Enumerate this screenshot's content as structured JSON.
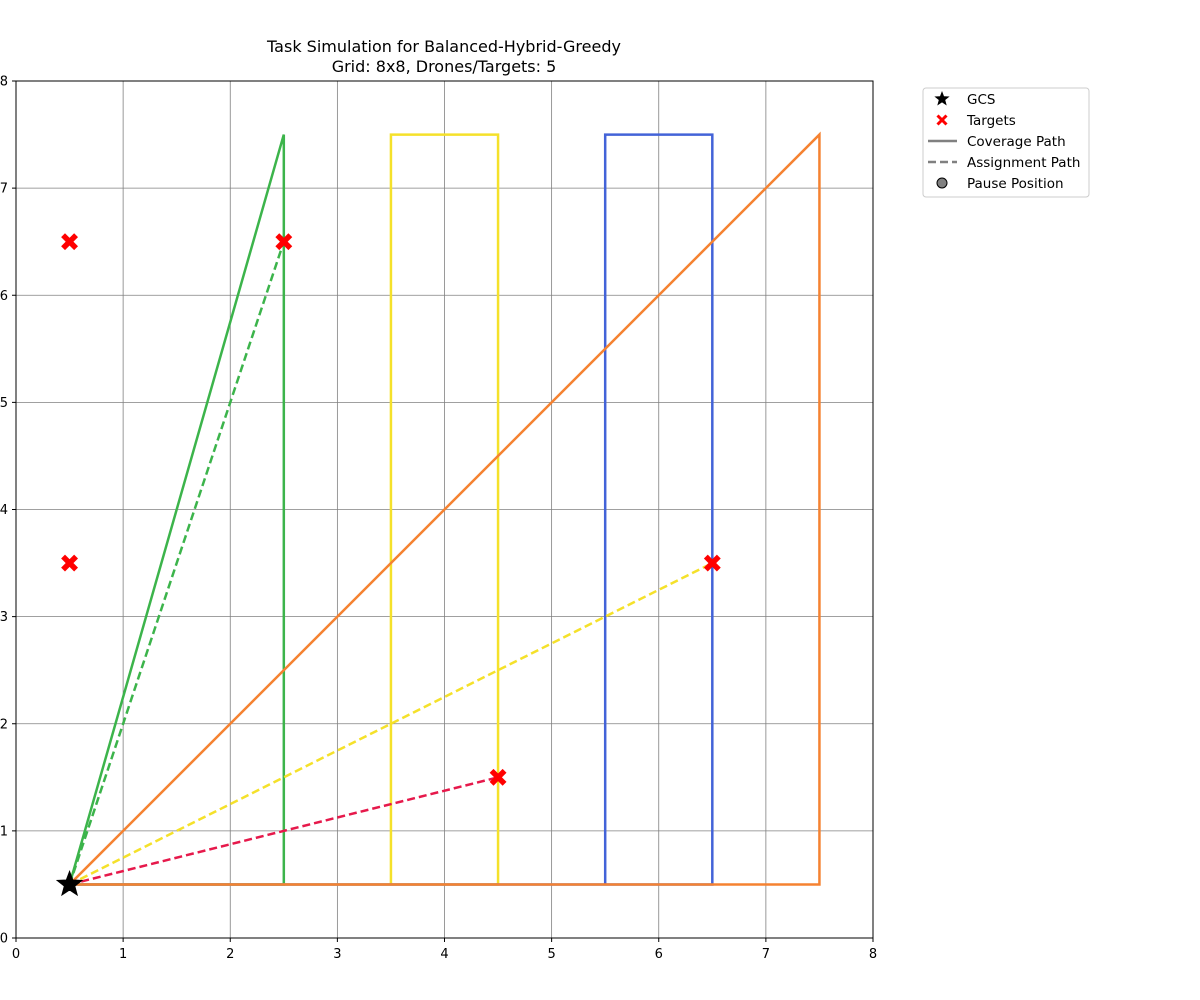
{
  "chart_data": {
    "type": "line",
    "title": "Task Simulation for Balanced-Hybrid-Greedy",
    "subtitle": "Grid: 8x8, Drones/Targets: 5",
    "xlim": [
      0,
      8
    ],
    "ylim": [
      0,
      8
    ],
    "x_ticks": [
      "0",
      "1",
      "2",
      "3",
      "4",
      "5",
      "6",
      "7",
      "8"
    ],
    "y_ticks": [
      "0",
      "1",
      "2",
      "3",
      "4",
      "5",
      "6",
      "7",
      "8"
    ],
    "grid": true,
    "legend_placement": "outside upper right",
    "legend": [
      {
        "label": "GCS",
        "marker": "star",
        "color": "#000000"
      },
      {
        "label": "Targets",
        "marker": "x",
        "color": "#ff0000"
      },
      {
        "label": "Coverage Path",
        "marker": "solid-line",
        "color": "#808080"
      },
      {
        "label": "Assignment Path",
        "marker": "dashed-line",
        "color": "#808080"
      },
      {
        "label": "Pause Position",
        "marker": "circle",
        "color": "#808080"
      }
    ],
    "gcs": {
      "x": 0.5,
      "y": 0.5
    },
    "targets": [
      {
        "x": 0.5,
        "y": 6.5
      },
      {
        "x": 2.5,
        "y": 6.5
      },
      {
        "x": 0.5,
        "y": 3.5
      },
      {
        "x": 6.5,
        "y": 3.5
      },
      {
        "x": 4.5,
        "y": 1.5
      }
    ],
    "coverage_paths": [
      {
        "color": "#3cb44b",
        "points": [
          [
            0.5,
            0.5
          ],
          [
            2.5,
            7.5
          ],
          [
            2.5,
            0.5
          ],
          [
            0.5,
            0.5
          ]
        ]
      },
      {
        "color": "#f5e12a",
        "points": [
          [
            0.5,
            0.5
          ],
          [
            3.5,
            0.5
          ],
          [
            3.5,
            7.5
          ],
          [
            4.5,
            7.5
          ],
          [
            4.5,
            0.5
          ],
          [
            0.5,
            0.5
          ]
        ]
      },
      {
        "color": "#4363d8",
        "points": [
          [
            0.5,
            0.5
          ],
          [
            5.5,
            0.5
          ],
          [
            5.5,
            7.5
          ],
          [
            6.5,
            7.5
          ],
          [
            6.5,
            0.5
          ],
          [
            0.5,
            0.5
          ]
        ]
      },
      {
        "color": "#f58231",
        "points": [
          [
            0.5,
            0.5
          ],
          [
            7.5,
            7.5
          ],
          [
            7.5,
            0.5
          ],
          [
            0.5,
            0.5
          ]
        ]
      }
    ],
    "assignment_paths": [
      {
        "color": "#3cb44b",
        "points": [
          [
            0.5,
            0.5
          ],
          [
            2.5,
            6.5
          ]
        ]
      },
      {
        "color": "#f5e12a",
        "points": [
          [
            0.5,
            0.5
          ],
          [
            6.5,
            3.5
          ]
        ]
      },
      {
        "color": "#e6194b",
        "points": [
          [
            0.5,
            0.5
          ],
          [
            4.5,
            1.5
          ]
        ]
      }
    ]
  }
}
